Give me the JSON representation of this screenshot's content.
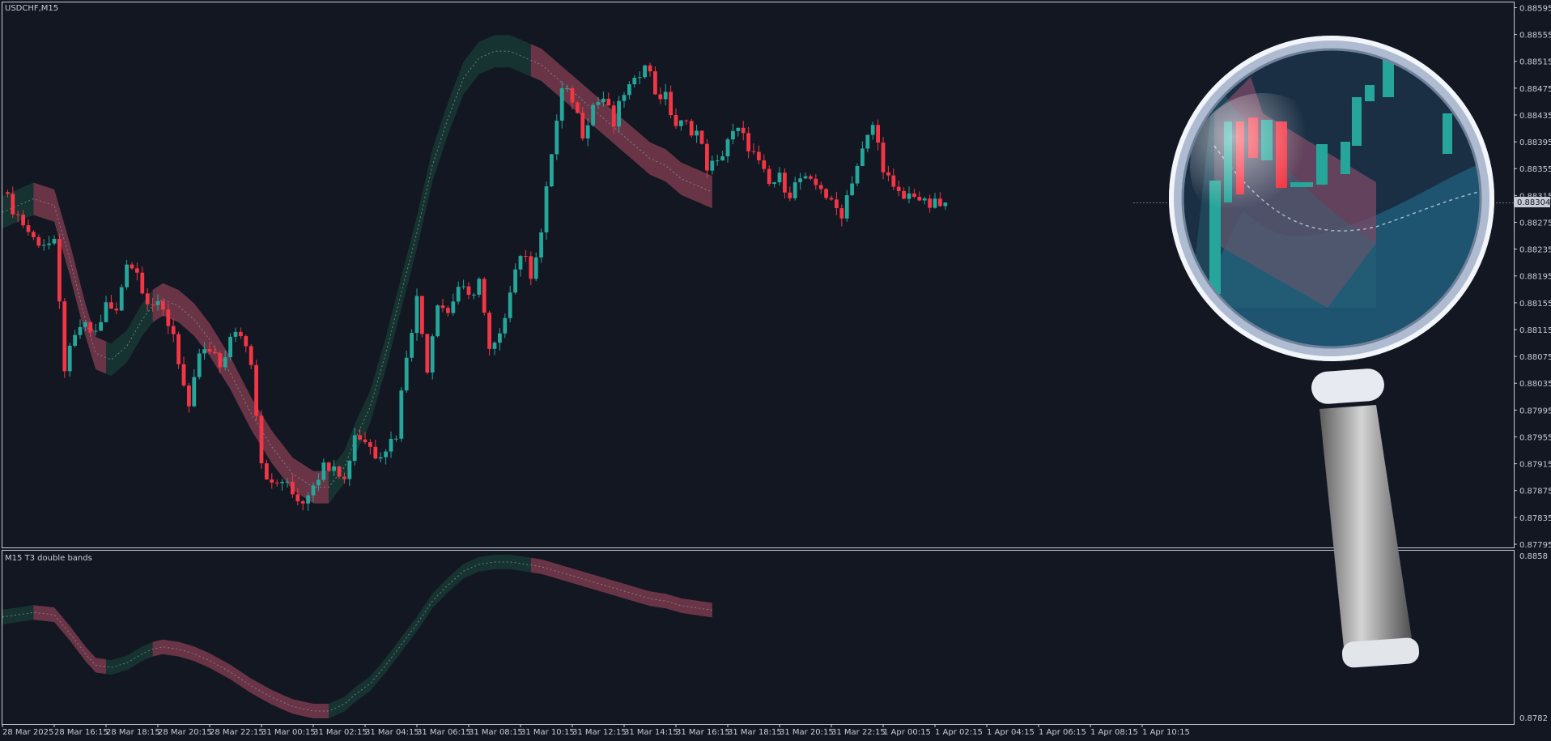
{
  "main_pane": {
    "symbol_label": "USDCHF,M15",
    "current_price_label": "0.88304"
  },
  "indicator_pane": {
    "title": "M15 T3 double bands",
    "axis_top_label": "0.8858",
    "axis_bottom_label": "0.8782"
  },
  "colors": {
    "background": "#131722",
    "frame": "#c8ccd4",
    "bull": "#26a69a",
    "bear": "#f23645",
    "band_bull": "#163533",
    "band_bear": "#6e3749",
    "magnifier_ring": "#d9e1ee",
    "magnifier_handle": "#9a9a9a"
  },
  "chart_data": [
    {
      "type": "candlestick",
      "title": "USDCHF,M15",
      "x_labels": [
        "28 Mar 2025",
        "28 Mar 16:15",
        "28 Mar 18:15",
        "28 Mar 20:15",
        "28 Mar 22:15",
        "31 Mar 00:15",
        "31 Mar 02:15",
        "31 Mar 04:15",
        "31 Mar 06:15",
        "31 Mar 08:15",
        "31 Mar 10:15",
        "31 Mar 12:15",
        "31 Mar 14:15",
        "31 Mar 16:15",
        "31 Mar 18:15",
        "31 Mar 20:15",
        "31 Mar 22:15",
        "1 Apr 00:15",
        "1 Apr 02:15",
        "1 Apr 04:15",
        "1 Apr 06:15",
        "1 Apr 08:15",
        "1 Apr 10:15"
      ],
      "y_ticks": [
        "0.88595",
        "0.88555",
        "0.88515",
        "0.88475",
        "0.88435",
        "0.88395",
        "0.88355",
        "0.88315",
        "0.88275",
        "0.88235",
        "0.88195",
        "0.88155",
        "0.88115",
        "0.88075",
        "0.88035",
        "0.87995",
        "0.87955",
        "0.87915",
        "0.87875",
        "0.87835",
        "0.87795"
      ],
      "ylim": [
        0.87795,
        0.88598
      ],
      "last_price": 0.88304,
      "price_path": [
        [
          0,
          0.8832
        ],
        [
          6,
          0.8825
        ],
        [
          10,
          0.8824
        ],
        [
          12,
          0.8806
        ],
        [
          15,
          0.8812
        ],
        [
          18,
          0.8811
        ],
        [
          20,
          0.8815
        ],
        [
          22,
          0.8814
        ],
        [
          24,
          0.8822
        ],
        [
          26,
          0.882
        ],
        [
          28,
          0.8816
        ],
        [
          31,
          0.8814
        ],
        [
          33,
          0.8811
        ],
        [
          36,
          0.8799
        ],
        [
          38,
          0.8808
        ],
        [
          40,
          0.8808
        ],
        [
          42,
          0.8806
        ],
        [
          44,
          0.881
        ],
        [
          46,
          0.8811
        ],
        [
          48,
          0.8807
        ],
        [
          50,
          0.8792
        ],
        [
          52,
          0.8788
        ],
        [
          54,
          0.8789
        ],
        [
          56,
          0.8787
        ],
        [
          58,
          0.8786
        ],
        [
          60,
          0.8789
        ],
        [
          62,
          0.8791
        ],
        [
          64,
          0.8792
        ],
        [
          66,
          0.8789
        ],
        [
          68,
          0.8796
        ],
        [
          70,
          0.8795
        ],
        [
          72,
          0.8793
        ],
        [
          74,
          0.8794
        ],
        [
          76,
          0.8796
        ],
        [
          78,
          0.8808
        ],
        [
          80,
          0.8816
        ],
        [
          82,
          0.8806
        ],
        [
          84,
          0.8816
        ],
        [
          86,
          0.8814
        ],
        [
          88,
          0.8818
        ],
        [
          90,
          0.8816
        ],
        [
          92,
          0.8819
        ],
        [
          94,
          0.8808
        ],
        [
          96,
          0.881
        ],
        [
          98,
          0.8818
        ],
        [
          100,
          0.8823
        ],
        [
          102,
          0.882
        ],
        [
          104,
          0.8826
        ],
        [
          106,
          0.8838
        ],
        [
          108,
          0.8847
        ],
        [
          110,
          0.8846
        ],
        [
          112,
          0.8841
        ],
        [
          114,
          0.8845
        ],
        [
          116,
          0.8846
        ],
        [
          118,
          0.8842
        ],
        [
          120,
          0.8847
        ],
        [
          122,
          0.8848
        ],
        [
          124,
          0.8852
        ],
        [
          126,
          0.8847
        ],
        [
          128,
          0.8846
        ],
        [
          130,
          0.8842
        ],
        [
          132,
          0.8842
        ],
        [
          134,
          0.8841
        ],
        [
          136,
          0.8836
        ],
        [
          138,
          0.8836
        ],
        [
          140,
          0.884
        ],
        [
          142,
          0.8841
        ],
        [
          144,
          0.8839
        ],
        [
          146,
          0.8836
        ],
        [
          148,
          0.8833
        ],
        [
          150,
          0.8834
        ],
        [
          152,
          0.8832
        ],
        [
          154,
          0.8834
        ],
        [
          156,
          0.8833
        ],
        [
          158,
          0.8833
        ],
        [
          160,
          0.883
        ],
        [
          162,
          0.8829
        ],
        [
          164,
          0.8834
        ],
        [
          166,
          0.8838
        ],
        [
          168,
          0.8842
        ],
        [
          170,
          0.8836
        ],
        [
          172,
          0.8832
        ],
        [
          174,
          0.8831
        ],
        [
          176,
          0.8832
        ],
        [
          178,
          0.883
        ]
      ],
      "band_t3": [
        [
          0,
          0.8829
        ],
        [
          6,
          0.8831
        ],
        [
          10,
          0.883
        ],
        [
          13,
          0.8822
        ],
        [
          16,
          0.8813
        ],
        [
          18,
          0.8808
        ],
        [
          21,
          0.8807
        ],
        [
          24,
          0.8809
        ],
        [
          27,
          0.8813
        ],
        [
          29,
          0.8815
        ],
        [
          31,
          0.8816
        ],
        [
          34,
          0.8815
        ],
        [
          37,
          0.8813
        ],
        [
          40,
          0.881
        ],
        [
          44,
          0.8805
        ],
        [
          48,
          0.8799
        ],
        [
          52,
          0.8794
        ],
        [
          56,
          0.879
        ],
        [
          60,
          0.8788
        ],
        [
          63,
          0.8788
        ],
        [
          66,
          0.8791
        ],
        [
          68,
          0.8795
        ],
        [
          71,
          0.88
        ],
        [
          74,
          0.8808
        ],
        [
          77,
          0.8817
        ],
        [
          80,
          0.8826
        ],
        [
          83,
          0.8836
        ],
        [
          86,
          0.8843
        ],
        [
          89,
          0.8849
        ],
        [
          92,
          0.8852
        ],
        [
          95,
          0.8853
        ],
        [
          98,
          0.8853
        ],
        [
          101,
          0.8852
        ],
        [
          104,
          0.8851
        ],
        [
          107,
          0.8849
        ],
        [
          110,
          0.8847
        ],
        [
          113,
          0.8845
        ],
        [
          116,
          0.8843
        ],
        [
          119,
          0.8841
        ],
        [
          122,
          0.8839
        ],
        [
          125,
          0.8837
        ],
        [
          128,
          0.8836
        ],
        [
          131,
          0.8834
        ],
        [
          134,
          0.8833
        ],
        [
          137,
          0.8832
        ]
      ],
      "band_colors": [
        "band_bull",
        "band_bear",
        "band_bull",
        "band_bear",
        "band_bull",
        "band_bear"
      ],
      "band_color_switch_x": [
        6,
        20,
        29,
        63,
        102
      ]
    },
    {
      "type": "line",
      "title": "M15 T3 double bands",
      "ylim": [
        0.8782,
        0.8858
      ]
    }
  ]
}
